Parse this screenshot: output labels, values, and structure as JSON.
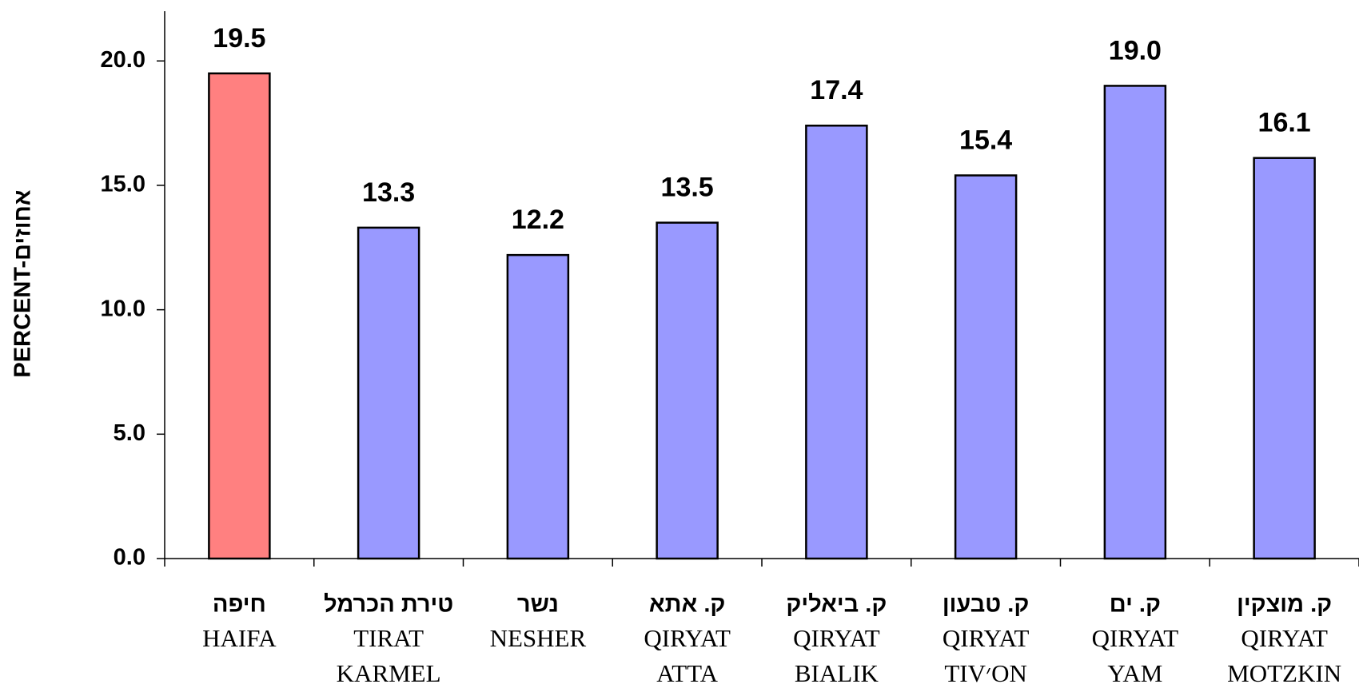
{
  "chart_data": {
    "type": "bar",
    "y_label": "PERCENT-אחוזים",
    "categories": [
      [
        "חיפה",
        "HAIFA"
      ],
      [
        "טירת הכרמל",
        "TIRAT",
        "KARMEL"
      ],
      [
        "נשר",
        "NESHER"
      ],
      [
        "ק. אתא",
        "QIRYAT",
        "ATTA"
      ],
      [
        "ק. ביאליק",
        "QIRYAT",
        "BIALIK"
      ],
      [
        "ק. טבעון",
        "QIRYAT",
        "TIV׳ON"
      ],
      [
        "ק. ים",
        "QIRYAT",
        "YAM"
      ],
      [
        "ק. מוצקין",
        "QIRYAT",
        "MOTZKIN"
      ]
    ],
    "values": [
      19.5,
      13.3,
      12.2,
      13.5,
      17.4,
      15.4,
      19.0,
      16.1
    ],
    "value_labels": [
      "19.5",
      "13.3",
      "12.2",
      "13.5",
      "17.4",
      "15.4",
      "19.0",
      "16.1"
    ],
    "colors": [
      "#ff8080",
      "#9999ff",
      "#9999ff",
      "#9999ff",
      "#9999ff",
      "#9999ff",
      "#9999ff",
      "#9999ff"
    ],
    "ylim": [
      0,
      22
    ],
    "yticks": [
      {
        "value": 0,
        "label": "0.0"
      },
      {
        "value": 5,
        "label": "5.0"
      },
      {
        "value": 10,
        "label": "10.0"
      },
      {
        "value": 15,
        "label": "15.0"
      },
      {
        "value": 20,
        "label": "20.0"
      }
    ],
    "grid": false
  }
}
